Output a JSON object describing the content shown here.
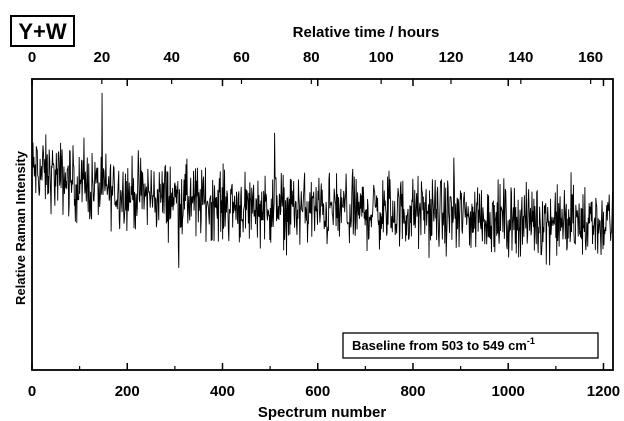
{
  "chart_data": {
    "type": "line",
    "panel_label": "Y+W",
    "title": "",
    "xlabel": "Spectrum number",
    "x2label": "Relative time / hours",
    "ylabel": "Relative Raman Intensity",
    "annotation": {
      "text": "Baseline from 503 to 549 cm",
      "superscript": "-1"
    },
    "xlim": [
      0,
      1220
    ],
    "x2lim": [
      0,
      166.4
    ],
    "xticks": [
      "0",
      "200",
      "400",
      "600",
      "800",
      "1000",
      "1200"
    ],
    "x2ticks": [
      "0",
      "20",
      "40",
      "60",
      "80",
      "100",
      "120",
      "140",
      "160"
    ],
    "yticks_shown": false,
    "ylim": [
      0,
      1
    ],
    "grid": false,
    "line_color": "#000000",
    "trend": {
      "x": [
        0,
        100,
        200,
        300,
        400,
        500,
        600,
        700,
        800,
        900,
        1000,
        1100,
        1220
      ],
      "y": [
        0.69,
        0.64,
        0.61,
        0.59,
        0.57,
        0.56,
        0.55,
        0.545,
        0.54,
        0.53,
        0.52,
        0.51,
        0.5
      ]
    },
    "noise_amplitude": 0.075,
    "series": [
      {
        "n_points": 1220
      }
    ]
  }
}
